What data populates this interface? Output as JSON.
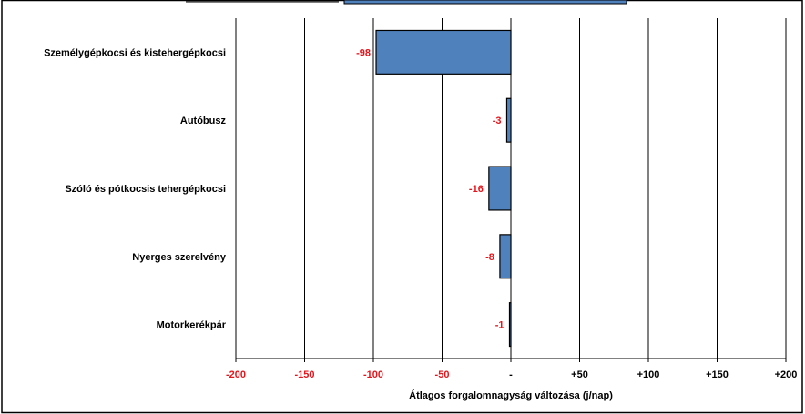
{
  "chart_data": {
    "type": "bar",
    "orientation": "horizontal",
    "categories": [
      "Személygépkocsi és kistehergépkocsi",
      "Autóbusz",
      "Szóló és pótkocsis tehergépkocsi",
      "Nyerges szerelvény",
      "Motorkerékpár"
    ],
    "values": [
      -98,
      -3,
      -16,
      -8,
      -1
    ],
    "value_labels": [
      "-98",
      "-3",
      "-16",
      "-8",
      "-1"
    ],
    "xlim": [
      -200,
      200
    ],
    "x_ticks": [
      -200,
      -150,
      -100,
      -50,
      0,
      50,
      100,
      150,
      200
    ],
    "x_tick_labels": [
      "-200",
      "-150",
      "-100",
      "-50",
      "-",
      "+50",
      "+100",
      "+150",
      "+200"
    ],
    "xlabel": "Átlagos forgalomnagyság változása (j/nap)",
    "grid": "vertical",
    "colors": {
      "bar_fill": "#4f81bd",
      "bar_stroke": "#000000",
      "negative_label": "#e8141b",
      "zero_label": "#000000",
      "positive_label": "#000000",
      "gridline": "#000000"
    }
  }
}
